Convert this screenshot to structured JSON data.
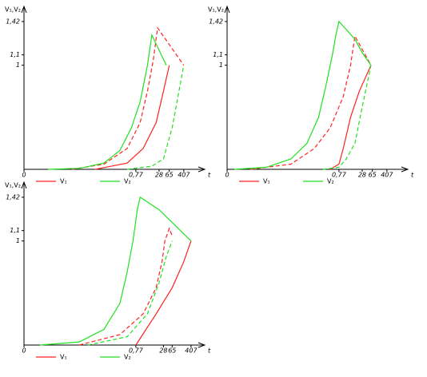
{
  "chart_data": [
    {
      "type": "line",
      "y_label": "V₁,V₂",
      "x_label": "t",
      "xlim": [
        0,
        1.2
      ],
      "ylim": [
        0,
        1.55
      ],
      "xticks": [
        0,
        {
          "value": 0.77,
          "label": "0,77"
        },
        {
          "value": 0.93,
          "label": "28"
        },
        {
          "value": 1.0,
          "label": "65"
        },
        {
          "value": 1.1,
          "label": "407"
        }
      ],
      "yticks": [
        1,
        {
          "value": 1.1,
          "label": "1,1"
        },
        {
          "value": 1.42,
          "label": "1,42"
        }
      ],
      "series": [
        {
          "name": "V₁",
          "color": "#ff2020",
          "curves": [
            {
              "dash": false,
              "x": [
                0.49,
                0.71,
                0.82,
                0.91,
                0.96,
                1.0
              ],
              "y": [
                0,
                0.06,
                0.2,
                0.45,
                0.75,
                1.0
              ]
            },
            {
              "dash": true,
              "x": [
                0.33,
                0.55,
                0.71,
                0.8,
                0.85,
                0.89,
                0.92,
                1.1
              ],
              "y": [
                0,
                0.05,
                0.2,
                0.45,
                0.75,
                1.05,
                1.36,
                1.0
              ]
            }
          ]
        },
        {
          "name": "V₂",
          "color": "#20e020",
          "curves": [
            {
              "dash": false,
              "x": [
                0.165,
                0.385,
                0.55,
                0.66,
                0.74,
                0.8,
                0.85,
                0.88,
                0.98
              ],
              "y": [
                0,
                0.01,
                0.06,
                0.18,
                0.4,
                0.65,
                1.0,
                1.29,
                1.0
              ]
            },
            {
              "dash": true,
              "x": [
                0.71,
                0.88,
                0.96,
                1.02,
                1.06,
                1.1
              ],
              "y": [
                0,
                0.03,
                0.1,
                0.4,
                0.7,
                1.0
              ]
            }
          ]
        }
      ]
    },
    {
      "type": "line",
      "y_label": "V₁,V₂",
      "x_label": "t",
      "xlim": [
        0,
        1.2
      ],
      "ylim": [
        0,
        1.55
      ],
      "xticks": [
        0,
        {
          "value": 0.77,
          "label": "0,77"
        },
        {
          "value": 0.93,
          "label": "28"
        },
        {
          "value": 1.0,
          "label": "65"
        },
        {
          "value": 1.1,
          "label": "407"
        }
      ],
      "yticks": [
        1,
        {
          "value": 1.1,
          "label": "1,1"
        },
        {
          "value": 1.42,
          "label": "1,42"
        }
      ],
      "series": [
        {
          "name": "V₁",
          "color": "#ff2020",
          "curves": [
            {
              "dash": false,
              "x": [
                0.71,
                0.77,
                0.8,
                0.85,
                0.91,
                0.99
              ],
              "y": [
                0,
                0.05,
                0.2,
                0.5,
                0.75,
                1.0
              ]
            },
            {
              "dash": true,
              "x": [
                0.16,
                0.44,
                0.6,
                0.71,
                0.8,
                0.85,
                0.88,
                0.99
              ],
              "y": [
                0,
                0.05,
                0.2,
                0.4,
                0.7,
                1.0,
                1.28,
                1.0
              ]
            }
          ]
        },
        {
          "name": "V₂",
          "color": "#20e020",
          "curves": [
            {
              "dash": false,
              "x": [
                0.05,
                0.27,
                0.44,
                0.55,
                0.63,
                0.68,
                0.725,
                0.75,
                0.77,
                0.88,
                0.93,
                0.99
              ],
              "y": [
                0,
                0.02,
                0.1,
                0.25,
                0.5,
                0.8,
                1.1,
                1.3,
                1.42,
                1.25,
                1.12,
                1.0
              ]
            },
            {
              "dash": true,
              "x": [
                0.66,
                0.77,
                0.82,
                0.88,
                0.93,
                0.99
              ],
              "y": [
                0,
                0.02,
                0.1,
                0.25,
                0.6,
                1.0
              ]
            }
          ]
        }
      ]
    },
    {
      "type": "line",
      "y_label": "V₁,V₂",
      "x_label": "t",
      "xlim": [
        0,
        1.2
      ],
      "ylim": [
        0,
        1.55
      ],
      "xticks": [
        0,
        {
          "value": 0.77,
          "label": "0,77"
        },
        {
          "value": 0.96,
          "label": "28"
        },
        {
          "value": 1.02,
          "label": "65"
        },
        {
          "value": 1.15,
          "label": "407"
        }
      ],
      "yticks": [
        1,
        {
          "value": 1.1,
          "label": "1,1"
        },
        {
          "value": 1.42,
          "label": "1,42"
        }
      ],
      "series": [
        {
          "name": "V₁",
          "color": "#ff2020",
          "curves": [
            {
              "dash": false,
              "x": [
                0.77,
                0.91,
                1.02,
                1.1,
                1.15
              ],
              "y": [
                0,
                0.3,
                0.55,
                0.8,
                1.0
              ]
            },
            {
              "dash": true,
              "x": [
                0.38,
                0.66,
                0.82,
                0.91,
                0.95,
                0.97,
                1.0,
                1.02
              ],
              "y": [
                0,
                0.1,
                0.3,
                0.55,
                0.8,
                1.0,
                1.12,
                1.05
              ]
            }
          ]
        },
        {
          "name": "V₂",
          "color": "#20e020",
          "curves": [
            {
              "dash": false,
              "x": [
                0.11,
                0.38,
                0.55,
                0.66,
                0.71,
                0.75,
                0.78,
                0.8,
                0.93,
                1.04,
                1.15
              ],
              "y": [
                0,
                0.03,
                0.15,
                0.4,
                0.7,
                1.0,
                1.3,
                1.42,
                1.3,
                1.15,
                1.0
              ]
            },
            {
              "dash": true,
              "x": [
                0.44,
                0.71,
                0.85,
                0.93,
                0.98,
                1.02
              ],
              "y": [
                0,
                0.08,
                0.3,
                0.6,
                0.85,
                1.0
              ]
            }
          ]
        }
      ]
    }
  ]
}
